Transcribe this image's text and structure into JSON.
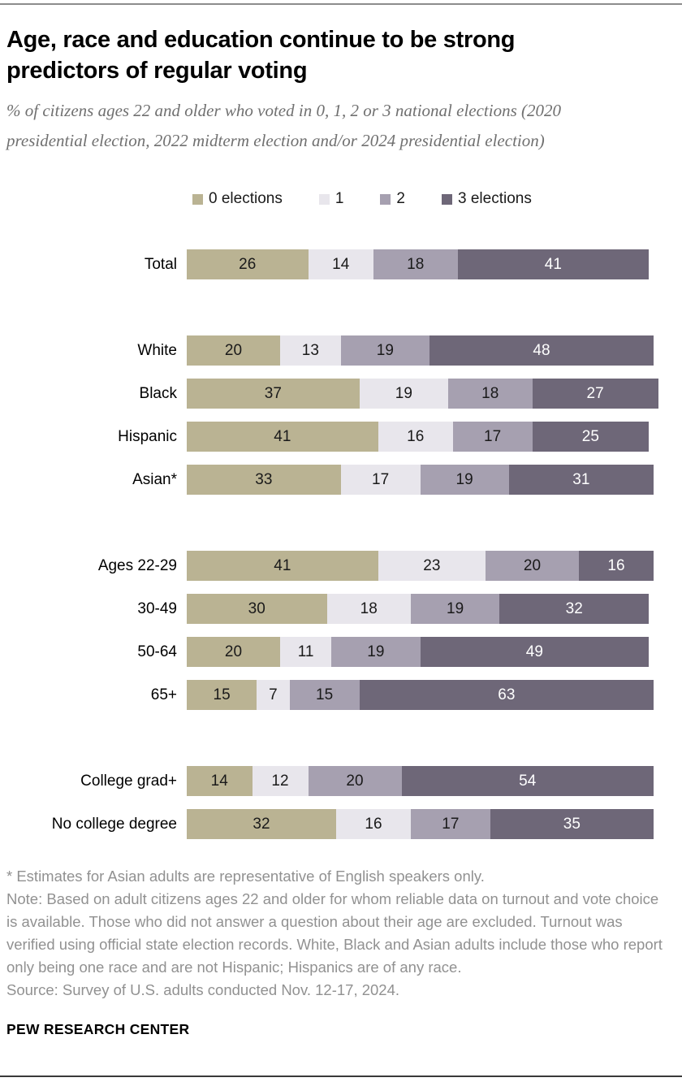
{
  "header": {
    "title_lines": [
      "Age, race and education continue to be strong",
      "predictors of regular voting"
    ],
    "subtitle": "% of citizens ages 22 and older who voted in 0, 1, 2 or 3 national elections (2020 presidential election, 2022 midterm election and/or 2024 presidential election)"
  },
  "footer": {
    "asterisk_note": "* Estimates for Asian adults are representative of English speakers only.",
    "note": "Note: Based on adult citizens ages 22 and older for whom reliable data on turnout and vote choice is available. Those who did not answer a question about their age are excluded. Turnout was verified using official state election records. White, Black and Asian adults include those who report only being one race and are not Hispanic; Hispanics are of any race.",
    "source": "Source: Survey of U.S. adults conducted Nov. 12-17, 2024.",
    "wordmark": "PEW RESEARCH CENTER"
  },
  "chart_data": {
    "type": "bar",
    "stacked": true,
    "orientation": "horizontal",
    "title": "Age, race and education continue to be strong predictors of regular voting",
    "subtitle": "% of citizens ages 22 and older who voted in 0, 1, 2 or 3 national elections (2020 presidential election, 2022 midterm election and/or 2024 presidential election)",
    "xlim": [
      0,
      100
    ],
    "grid": false,
    "legend_position": "top",
    "series_labels": [
      "0 elections",
      "1",
      "2",
      "3 elections"
    ],
    "colors": {
      "elections_0": "#bab393",
      "elections_1": "#e8e6ec",
      "elections_2": "#a6a0b0",
      "elections_3": "#6e6778"
    },
    "legend": [
      {
        "label": "0 elections",
        "color": "#bab393"
      },
      {
        "label": "1",
        "color": "#e8e6ec"
      },
      {
        "label": "2",
        "color": "#a6a0b0"
      },
      {
        "label": "3 elections",
        "color": "#6e6778"
      }
    ],
    "groups": [
      {
        "rows": [
          {
            "label": "Total",
            "values": [
              26,
              14,
              18,
              41
            ]
          }
        ]
      },
      {
        "rows": [
          {
            "label": "White",
            "values": [
              20,
              13,
              19,
              48
            ]
          },
          {
            "label": "Black",
            "values": [
              37,
              19,
              18,
              27
            ]
          },
          {
            "label": "Hispanic",
            "values": [
              41,
              16,
              17,
              25
            ]
          },
          {
            "label": "Asian*",
            "values": [
              33,
              17,
              19,
              31
            ]
          }
        ]
      },
      {
        "rows": [
          {
            "label": "Ages 22-29",
            "values": [
              41,
              23,
              20,
              16
            ]
          },
          {
            "label": "30-49",
            "values": [
              30,
              18,
              19,
              32
            ]
          },
          {
            "label": "50-64",
            "values": [
              20,
              11,
              19,
              49
            ]
          },
          {
            "label": "65+",
            "values": [
              15,
              7,
              15,
              63
            ]
          }
        ]
      },
      {
        "rows": [
          {
            "label": "College grad+",
            "values": [
              14,
              12,
              20,
              54
            ]
          },
          {
            "label": "No college degree",
            "values": [
              32,
              16,
              17,
              35
            ]
          }
        ]
      }
    ]
  }
}
